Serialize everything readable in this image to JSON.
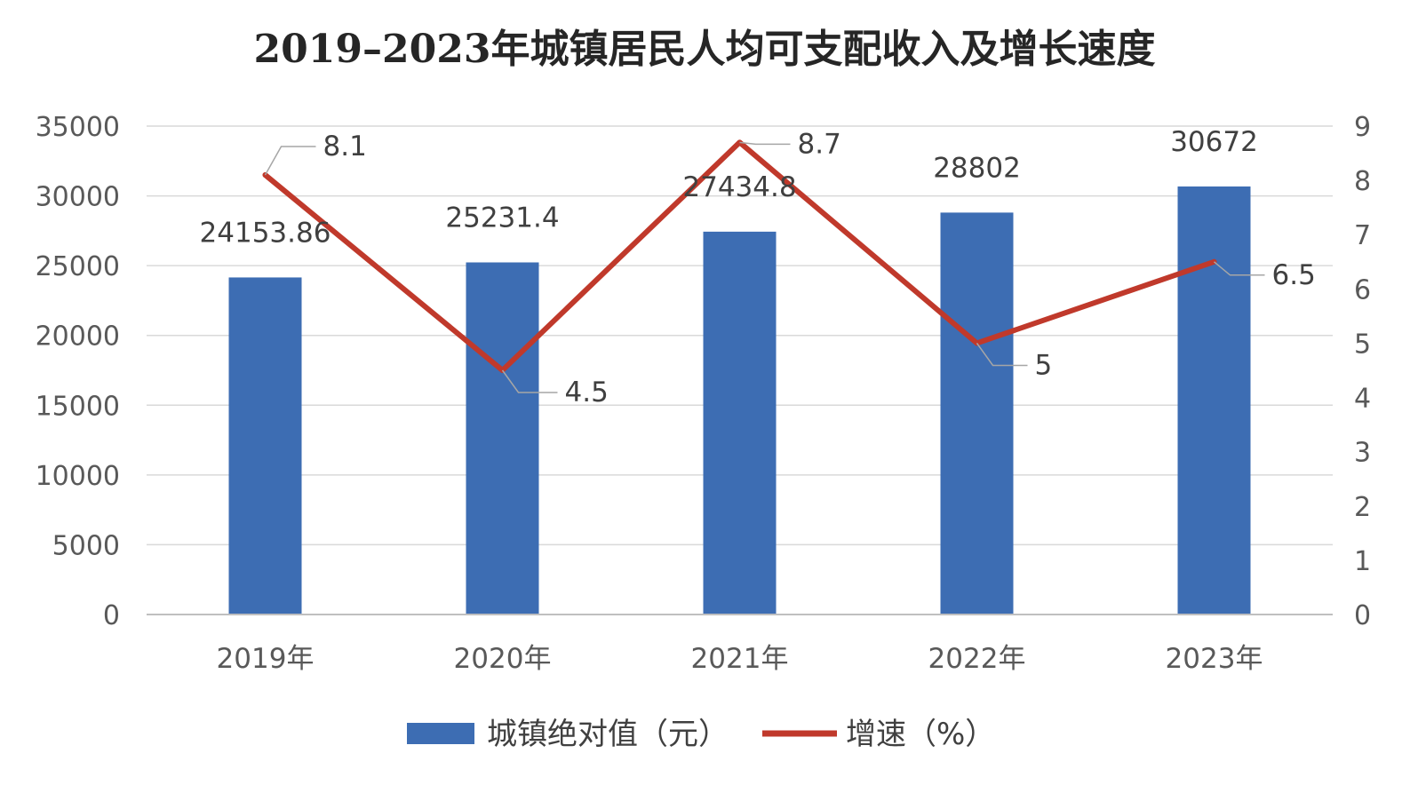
{
  "chart_data": {
    "type": "bar+line",
    "title": "2019–2023年城镇居民人均可支配收入及增长速度",
    "categories": [
      "2019年",
      "2020年",
      "2021年",
      "2022年",
      "2023年"
    ],
    "series": [
      {
        "name": "城镇绝对值（元）",
        "type": "bar",
        "axis": "left",
        "values": [
          24153.86,
          25231.4,
          27434.8,
          28802,
          30672
        ],
        "labels": [
          "24153.86",
          "25231.4",
          "27434.8",
          "28802",
          "30672"
        ]
      },
      {
        "name": "增速（%）",
        "type": "line",
        "axis": "right",
        "values": [
          8.1,
          4.5,
          8.7,
          5,
          6.5
        ],
        "labels": [
          "8.1",
          "4.5",
          "8.7",
          "5",
          "6.5"
        ]
      }
    ],
    "y_left": {
      "min": 0,
      "max": 35000,
      "step": 5000,
      "ticks": [
        "0",
        "5000",
        "10000",
        "15000",
        "20000",
        "25000",
        "30000",
        "35000"
      ]
    },
    "y_right": {
      "min": 0,
      "max": 9,
      "step": 1,
      "ticks": [
        "0",
        "1",
        "2",
        "3",
        "4",
        "5",
        "6",
        "7",
        "8",
        "9"
      ]
    },
    "grid": true,
    "legend_position": "bottom",
    "colors": {
      "bar": "#3d6db3",
      "line": "#c0392b"
    }
  }
}
